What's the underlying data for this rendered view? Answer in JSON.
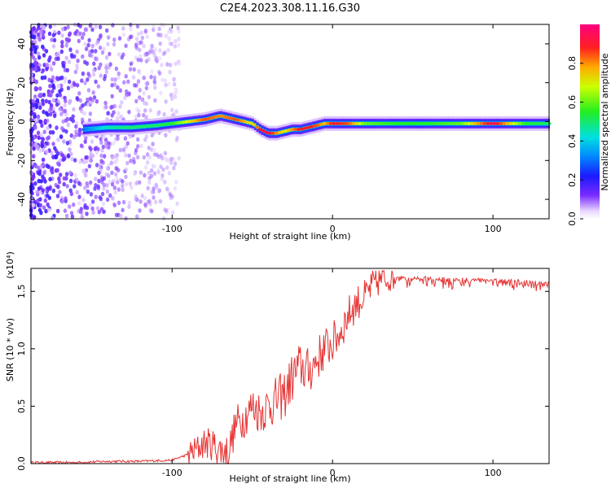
{
  "title": "C2E4.2023.308.11.16.G30",
  "chart_data": [
    {
      "type": "heatmap",
      "title": "C2E4.2023.308.11.16.G30",
      "xlabel": "Height of straight line (km)",
      "ylabel": "Frequency (Hz)",
      "xlim": [
        -188,
        135
      ],
      "ylim": [
        -50,
        50
      ],
      "xticks": [
        -100,
        0,
        100
      ],
      "yticks": [
        -40,
        -20,
        0,
        20,
        40
      ],
      "colorbar": {
        "label": "Normalized spectral amplitude",
        "range": [
          0,
          1
        ],
        "ticks": [
          "0.0",
          "0.2",
          "0.4",
          "0.6",
          "0.8"
        ],
        "colormap": "rainbow (white-violet-blue-cyan-green-yellow-red)"
      },
      "ridge": {
        "x": [
          -155,
          -140,
          -125,
          -110,
          -100,
          -90,
          -80,
          -70,
          -60,
          -50,
          -45,
          -40,
          -35,
          -30,
          -25,
          -20,
          -15,
          -10,
          -5,
          0,
          10,
          20,
          40,
          60,
          80,
          100,
          120,
          135
        ],
        "y": [
          -4,
          -3,
          -3,
          -2,
          -1,
          0,
          1,
          3,
          1,
          -1,
          -4,
          -6,
          -6,
          -5,
          -4,
          -4,
          -3,
          -2,
          -1,
          -1,
          -1,
          -1,
          -1,
          -1,
          -1,
          -1,
          -1,
          -1
        ],
        "amplitude": [
          0.3,
          0.45,
          0.5,
          0.5,
          0.55,
          0.7,
          0.85,
          0.8,
          0.85,
          0.7,
          0.9,
          0.95,
          0.8,
          0.7,
          0.8,
          0.9,
          0.9,
          0.85,
          0.75,
          0.9,
          0.85,
          0.6,
          0.55,
          0.55,
          0.6,
          0.95,
          0.55,
          0.5
        ]
      },
      "noise_region_x": [
        -188,
        -95
      ]
    },
    {
      "type": "line",
      "xlabel": "Height of straight line (km)",
      "ylabel": "SNR (10 * v/v)",
      "yscale_note": "(x10⁴)",
      "xlim": [
        -188,
        135
      ],
      "ylim": [
        0,
        1.7
      ],
      "xticks": [
        -100,
        0,
        100
      ],
      "yticks": [
        "0.0",
        "0.5",
        "1.0",
        "1.5"
      ],
      "color": "#e53333",
      "x": [
        -188,
        -160,
        -140,
        -120,
        -100,
        -90,
        -85,
        -80,
        -75,
        -70,
        -65,
        -60,
        -55,
        -50,
        -45,
        -40,
        -35,
        -30,
        -25,
        -20,
        -15,
        -10,
        -5,
        0,
        5,
        10,
        15,
        20,
        25,
        30,
        35,
        40,
        50,
        60,
        80,
        100,
        120,
        135
      ],
      "y": [
        0.01,
        0.01,
        0.02,
        0.02,
        0.03,
        0.08,
        0.12,
        0.18,
        0.17,
        0.12,
        0.1,
        0.35,
        0.4,
        0.5,
        0.45,
        0.5,
        0.55,
        0.6,
        0.75,
        0.85,
        0.8,
        0.9,
        1.0,
        1.05,
        1.15,
        1.3,
        1.4,
        1.45,
        1.55,
        1.6,
        1.62,
        1.63,
        1.63,
        1.63,
        1.62,
        1.61,
        1.6,
        1.58
      ]
    }
  ]
}
